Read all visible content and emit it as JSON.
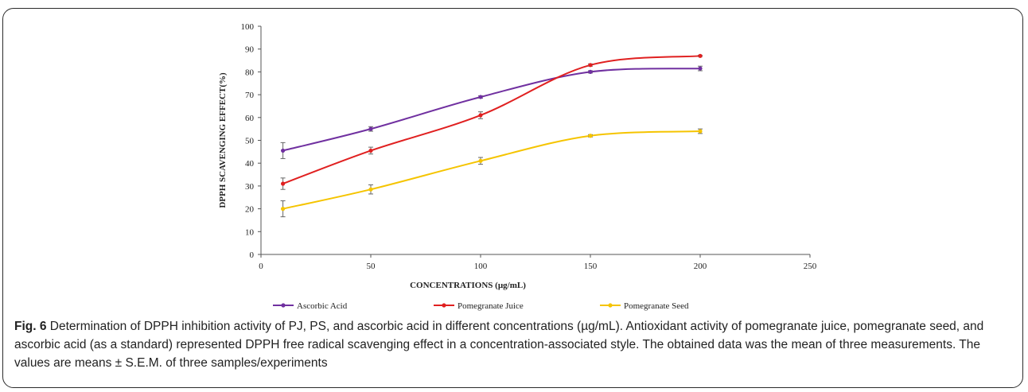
{
  "chart_data": {
    "type": "line",
    "xlabel": "CONCENTRATIONS (µg/mL)",
    "ylabel": "DPPH SCAVENGING EFFECT(%)",
    "xlim": [
      0,
      250
    ],
    "ylim": [
      0,
      100
    ],
    "x_ticks": [
      0,
      50,
      100,
      150,
      200,
      250
    ],
    "y_ticks": [
      0,
      10,
      20,
      30,
      40,
      50,
      60,
      70,
      80,
      90,
      100
    ],
    "grid": false,
    "legend_position": "bottom",
    "x": [
      10,
      50,
      100,
      150,
      200
    ],
    "series": [
      {
        "name": "Ascorbic Acid",
        "color": "#7030a0",
        "values": [
          45.5,
          55,
          69,
          80,
          81.5
        ],
        "errors": [
          3.5,
          1,
          0.5,
          0.5,
          1
        ]
      },
      {
        "name": "Pomegranate Juice",
        "color": "#e02020",
        "values": [
          31,
          45.5,
          61,
          83,
          87
        ],
        "errors": [
          2.5,
          1.5,
          1.5,
          0.5,
          0.3
        ]
      },
      {
        "name": "Pomegranate Seed",
        "color": "#f5c400",
        "values": [
          20,
          28.5,
          41,
          52,
          54
        ],
        "errors": [
          3.5,
          2,
          1.5,
          0.5,
          1
        ]
      }
    ]
  },
  "caption": {
    "label": "Fig. 6",
    "text": " Determination of DPPH inhibition activity of PJ, PS, and ascorbic acid in different concentrations (µg/mL). Antioxidant activity of pomegranate juice, pomegranate seed, and ascorbic acid (as a standard) represented DPPH free radical scavenging effect in a concentration-associated style. The obtained data was the mean of three measurements. The values are means ± S.E.M. of three samples/experiments"
  }
}
